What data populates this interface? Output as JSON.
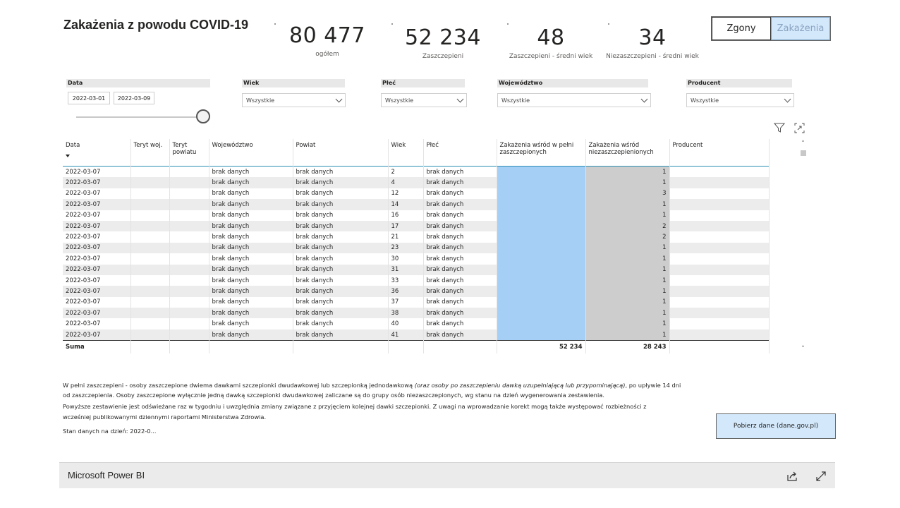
{
  "title": "Zakażenia z powodu COVID-19",
  "kpis": [
    {
      "value": "80 477",
      "label": "ogółem"
    },
    {
      "value": "52 234",
      "label": "Zaszczepieni"
    },
    {
      "value": "48",
      "label": "Zaszczepieni - średni wiek"
    },
    {
      "value": "34",
      "label": "Niezaszczepieni - średni wiek"
    }
  ],
  "toggle": {
    "option1": "Zgony",
    "option2": "Zakażenia"
  },
  "filters": {
    "date_label": "Data",
    "date_from": "2022-03-01",
    "date_to": "2022-03-09",
    "age_label": "Wiek",
    "age_value": "Wszystkie",
    "sex_label": "Płeć",
    "sex_value": "Wszystkie",
    "voiv_label": "Województwo",
    "voiv_value": "Wszystkie",
    "prod_label": "Producent",
    "prod_value": "Wszystkie"
  },
  "table": {
    "columns": [
      "Data",
      "Teryt woj.",
      "Teryt powiatu",
      "Województwo",
      "Powiat",
      "Wiek",
      "Płeć",
      "Zakażenia wśród w pełni zaszczepionych",
      "Zakażenia wśród niezaszczepienionych",
      "Producent"
    ],
    "rows": [
      [
        "2022-03-07",
        "",
        "",
        "brak danych",
        "brak danych",
        "2",
        "brak danych",
        "",
        "1",
        ""
      ],
      [
        "2022-03-07",
        "",
        "",
        "brak danych",
        "brak danych",
        "4",
        "brak danych",
        "",
        "1",
        ""
      ],
      [
        "2022-03-07",
        "",
        "",
        "brak danych",
        "brak danych",
        "12",
        "brak danych",
        "",
        "3",
        ""
      ],
      [
        "2022-03-07",
        "",
        "",
        "brak danych",
        "brak danych",
        "14",
        "brak danych",
        "",
        "1",
        ""
      ],
      [
        "2022-03-07",
        "",
        "",
        "brak danych",
        "brak danych",
        "16",
        "brak danych",
        "",
        "1",
        ""
      ],
      [
        "2022-03-07",
        "",
        "",
        "brak danych",
        "brak danych",
        "17",
        "brak danych",
        "",
        "2",
        ""
      ],
      [
        "2022-03-07",
        "",
        "",
        "brak danych",
        "brak danych",
        "21",
        "brak danych",
        "",
        "2",
        ""
      ],
      [
        "2022-03-07",
        "",
        "",
        "brak danych",
        "brak danych",
        "23",
        "brak danych",
        "",
        "1",
        ""
      ],
      [
        "2022-03-07",
        "",
        "",
        "brak danych",
        "brak danych",
        "30",
        "brak danych",
        "",
        "1",
        ""
      ],
      [
        "2022-03-07",
        "",
        "",
        "brak danych",
        "brak danych",
        "31",
        "brak danych",
        "",
        "1",
        ""
      ],
      [
        "2022-03-07",
        "",
        "",
        "brak danych",
        "brak danych",
        "33",
        "brak danych",
        "",
        "1",
        ""
      ],
      [
        "2022-03-07",
        "",
        "",
        "brak danych",
        "brak danych",
        "36",
        "brak danych",
        "",
        "1",
        ""
      ],
      [
        "2022-03-07",
        "",
        "",
        "brak danych",
        "brak danych",
        "37",
        "brak danych",
        "",
        "1",
        ""
      ],
      [
        "2022-03-07",
        "",
        "",
        "brak danych",
        "brak danych",
        "38",
        "brak danych",
        "",
        "1",
        ""
      ],
      [
        "2022-03-07",
        "",
        "",
        "brak danych",
        "brak danych",
        "40",
        "brak danych",
        "",
        "1",
        ""
      ],
      [
        "2022-03-07",
        "",
        "",
        "brak danych",
        "brak danych",
        "41",
        "brak danych",
        "",
        "1",
        ""
      ]
    ],
    "total_label": "Suma",
    "total_vaccinated": "52 234",
    "total_unvaccinated": "28 243"
  },
  "notes": {
    "line1a": "W pełni zaszczepieni - osoby zaszczepione dwiema dawkami szczepionki dwudawkowej lub szczepionką jednodawkową ",
    "line1b": "(oraz osoby po zaszczepieniu dawką uzupełniającą lub przypominającą)",
    "line1c": ", po upływie 14 dni",
    "line2": "od zaszczepienia. Osoby zaszczepione wyłącznie jedną dawką szczepionki dwudawkowej zaliczane są do grupy osób niezaszczepionych, wg stanu na dzień wygenerowania zestawienia.",
    "line3": "Powyższe zestawienie jest odświeżane raz w tygodniu i uwzględnia zmiany związane z przyjęciem kolejnej dawki szczepionki. Z uwagi na wprowadzanie korekt mogą także występować rozbieżności z",
    "line4": "wcześniej publikowanymi dziennymi raportami Ministerstwa Zdrowia.",
    "status": "Stan danych na dzień: 2022-0..."
  },
  "download_button": "Pobierz dane (dane.gov.pl)",
  "footer": {
    "brand": "Microsoft Power BI"
  },
  "colors": {
    "vaccinated": "#a6cff5",
    "unvaccinated": "#cdcdcd",
    "toggle_active": "#d3e8fb"
  }
}
